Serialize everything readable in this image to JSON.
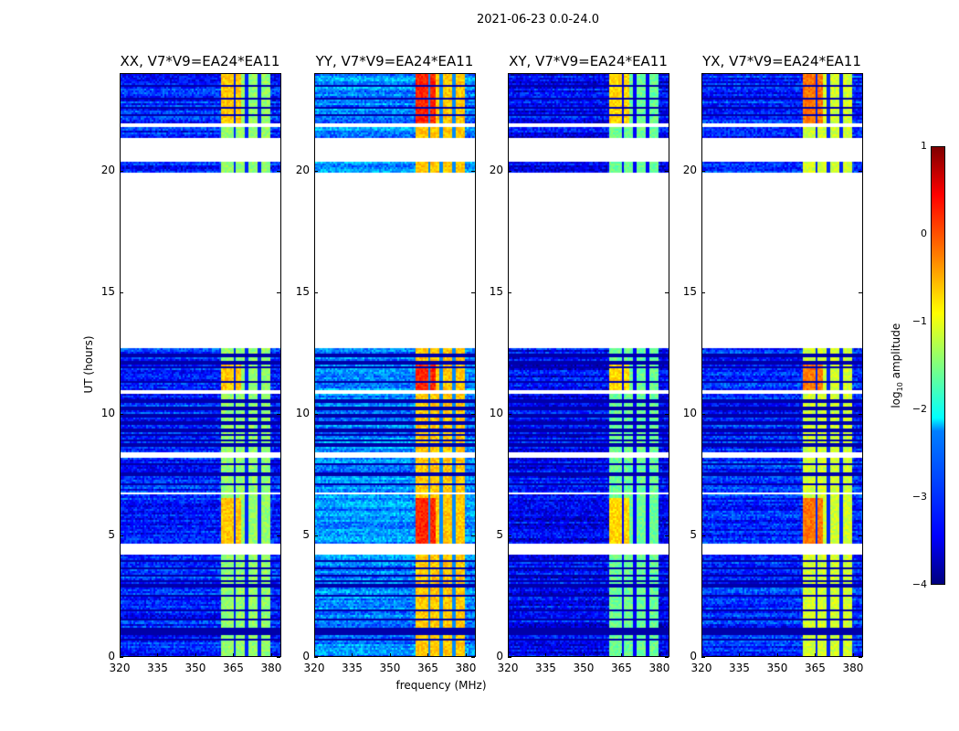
{
  "chart_data": {
    "type": "heatmap",
    "title": "2021-06-23 0.0-24.0",
    "xlabel": "frequency (MHz)",
    "ylabel": "UT (hours)",
    "xlim": [
      320,
      384
    ],
    "ylim": [
      0,
      24
    ],
    "xticks": [
      "320",
      "335",
      "350",
      "365",
      "380"
    ],
    "xtick_values": [
      320,
      335,
      350,
      365,
      380
    ],
    "yticks": [
      "0",
      "5",
      "10",
      "15",
      "20"
    ],
    "ytick_values": [
      0,
      5,
      10,
      15,
      20
    ],
    "colorbar": {
      "label": "log10 amplitude",
      "label_main": "log",
      "label_sub": "10",
      "label_rest": " amplitude",
      "range": [
        -4,
        1
      ],
      "ticks": [
        "1",
        "0",
        "−1",
        "−2",
        "−3",
        "−4"
      ],
      "tick_values": [
        1,
        0,
        -1,
        -2,
        -3,
        -4
      ],
      "colormap": "jet"
    },
    "data_hour_ranges": [
      [
        0,
        4.2
      ],
      [
        4.6,
        6.7
      ],
      [
        6.75,
        8.2
      ],
      [
        8.4,
        10.8
      ],
      [
        10.95,
        12.7
      ],
      [
        19.9,
        20.35
      ],
      [
        21.4,
        21.85
      ],
      [
        22.0,
        24.0
      ]
    ],
    "flagged_hours": [
      0.7,
      0.95,
      1.1,
      1.5,
      1.9,
      2.5,
      2.9,
      3.1,
      3.3,
      3.6,
      3.9,
      7.1,
      7.5,
      7.9,
      8.7,
      8.9,
      9.1,
      9.3,
      9.6,
      9.9,
      10.2,
      10.5,
      11.3,
      11.9,
      12.1,
      12.4,
      22.3,
      22.6,
      23.0,
      23.5
    ],
    "band_freq_mhz": [
      360,
      380
    ],
    "band_gaps_mhz": [
      365.5,
      370.5,
      375.5
    ],
    "panels": [
      {
        "title": "XX, V7*V9=EA24*EA11",
        "background_level": -3.2,
        "band_level": -1.4,
        "hot_level": -0.6
      },
      {
        "title": "YY, V7*V9=EA24*EA11",
        "background_level": -2.7,
        "band_level": -0.6,
        "hot_level": 0.2
      },
      {
        "title": "XY, V7*V9=EA24*EA11",
        "background_level": -3.4,
        "band_level": -1.6,
        "hot_level": -0.7
      },
      {
        "title": "YX, V7*V9=EA24*EA11",
        "background_level": -3.2,
        "band_level": -1.1,
        "hot_level": -0.2
      }
    ]
  }
}
